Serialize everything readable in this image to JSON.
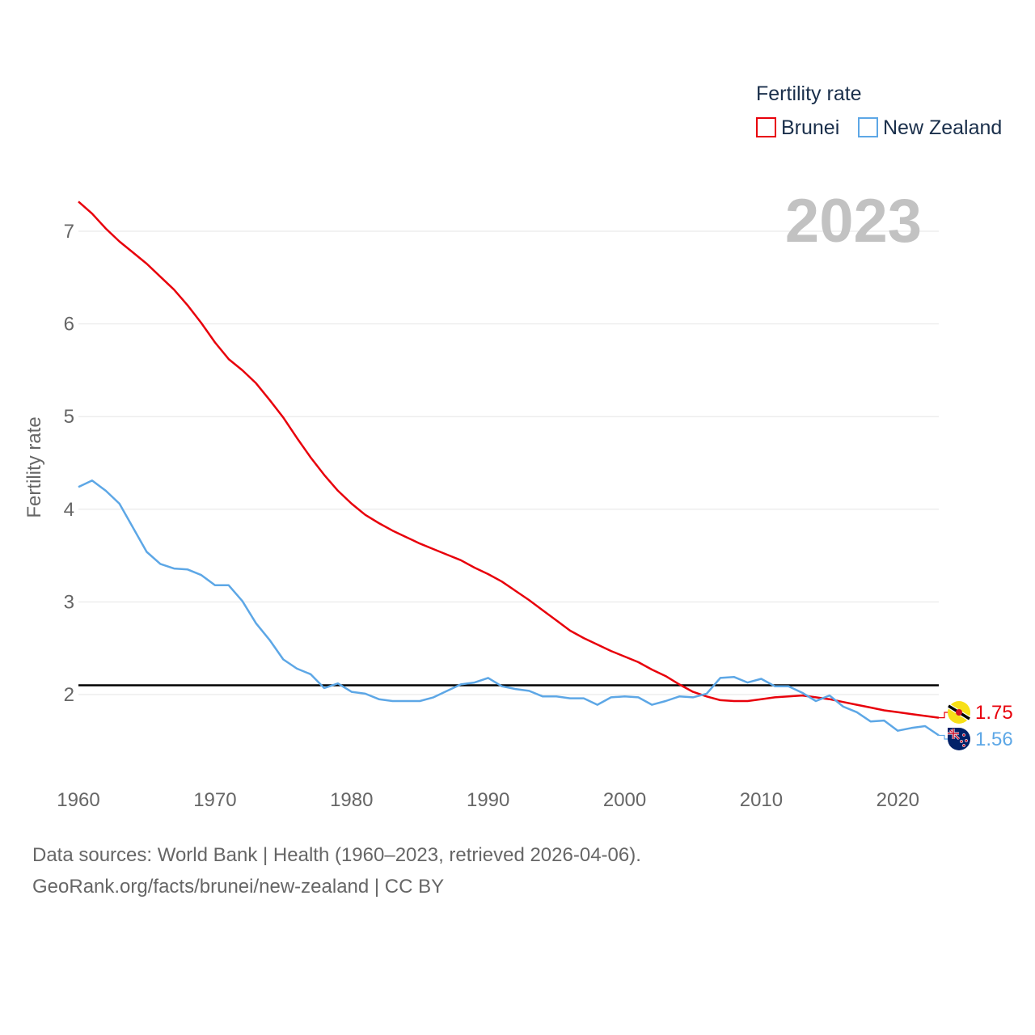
{
  "chart_data": {
    "type": "line",
    "title": "Fertility rate",
    "ylabel": "Fertility rate",
    "xlabel": "",
    "year_label": "2023",
    "xlim": [
      1960,
      2023
    ],
    "ylim": [
      1.2,
      7.4
    ],
    "yticks": [
      2,
      3,
      4,
      5,
      6,
      7
    ],
    "xticks": [
      1960,
      1970,
      1980,
      1990,
      2000,
      2010,
      2020
    ],
    "reference_line": 2.1,
    "grid": true,
    "legend_position": "top-right",
    "x": [
      1960,
      1961,
      1962,
      1963,
      1964,
      1965,
      1966,
      1967,
      1968,
      1969,
      1970,
      1971,
      1972,
      1973,
      1974,
      1975,
      1976,
      1977,
      1978,
      1979,
      1980,
      1981,
      1982,
      1983,
      1984,
      1985,
      1986,
      1987,
      1988,
      1989,
      1990,
      1991,
      1992,
      1993,
      1994,
      1995,
      1996,
      1997,
      1998,
      1999,
      2000,
      2001,
      2002,
      2003,
      2004,
      2005,
      2006,
      2007,
      2008,
      2009,
      2010,
      2011,
      2012,
      2013,
      2014,
      2015,
      2016,
      2017,
      2018,
      2019,
      2020,
      2021,
      2022,
      2023
    ],
    "series": [
      {
        "name": "Brunei",
        "color": "#e8000b",
        "end_label": "1.75",
        "flag_icon": "brunei-flag-icon",
        "values": [
          7.32,
          7.19,
          7.03,
          6.89,
          6.77,
          6.65,
          6.51,
          6.37,
          6.2,
          6.01,
          5.8,
          5.62,
          5.5,
          5.36,
          5.18,
          4.99,
          4.77,
          4.56,
          4.37,
          4.2,
          4.06,
          3.94,
          3.85,
          3.77,
          3.7,
          3.63,
          3.57,
          3.51,
          3.45,
          3.37,
          3.3,
          3.22,
          3.12,
          3.02,
          2.91,
          2.8,
          2.69,
          2.61,
          2.54,
          2.47,
          2.41,
          2.35,
          2.27,
          2.2,
          2.11,
          2.03,
          1.98,
          1.94,
          1.93,
          1.93,
          1.95,
          1.97,
          1.98,
          1.99,
          1.97,
          1.95,
          1.92,
          1.89,
          1.86,
          1.83,
          1.81,
          1.79,
          1.77,
          1.75
        ]
      },
      {
        "name": "New Zealand",
        "color": "#5da7e6",
        "end_label": "1.56",
        "flag_icon": "new-zealand-flag-icon",
        "values": [
          4.24,
          4.31,
          4.2,
          4.06,
          3.8,
          3.54,
          3.41,
          3.36,
          3.35,
          3.29,
          3.18,
          3.18,
          3.01,
          2.77,
          2.59,
          2.38,
          2.28,
          2.22,
          2.07,
          2.12,
          2.03,
          2.01,
          1.95,
          1.93,
          1.93,
          1.93,
          1.97,
          2.04,
          2.11,
          2.13,
          2.18,
          2.09,
          2.06,
          2.04,
          1.98,
          1.98,
          1.96,
          1.96,
          1.89,
          1.97,
          1.98,
          1.97,
          1.89,
          1.93,
          1.98,
          1.97,
          2.01,
          2.18,
          2.19,
          2.13,
          2.17,
          2.09,
          2.09,
          2.02,
          1.93,
          1.99,
          1.87,
          1.81,
          1.71,
          1.72,
          1.61,
          1.64,
          1.66,
          1.56
        ]
      }
    ]
  },
  "footer": {
    "sources": "Data sources: World Bank | Health (1960–2023, retrieved 2026-04-06).",
    "attribution": "GeoRank.org/facts/brunei/new-zealand | CC BY"
  }
}
